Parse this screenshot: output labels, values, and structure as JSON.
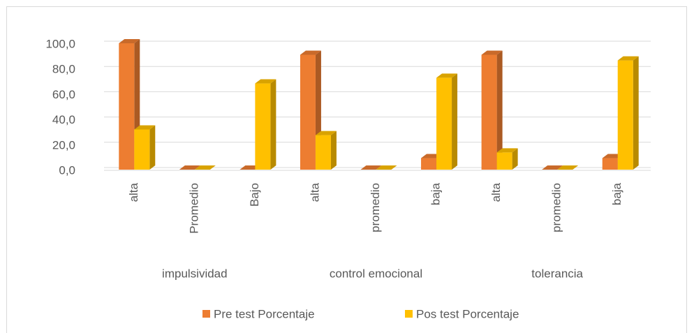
{
  "chart_data": {
    "type": "bar3d",
    "categories": [
      "alta",
      "Promedio",
      "Bajo",
      "alta",
      "promedio",
      "baja",
      "alta",
      "promedio",
      "baja"
    ],
    "category_groups": [
      "impulsividad",
      "control emocional",
      "tolerancia"
    ],
    "series": [
      {
        "name": "Pre test Porcentaje",
        "color": "#ED7D31",
        "values": [
          100,
          0,
          0,
          90.9,
          0,
          9.1,
          90.9,
          0,
          9.1
        ]
      },
      {
        "name": "Pos test Porcentaje",
        "color": "#FFC000",
        "values": [
          31.8,
          0,
          68.2,
          27.3,
          0,
          72.7,
          13.6,
          0,
          86.4
        ]
      }
    ],
    "ylim": [
      0,
      100
    ],
    "yticks": [
      {
        "value": 0,
        "label": "0,0"
      },
      {
        "value": 20,
        "label": "20,0"
      },
      {
        "value": 40,
        "label": "40,0"
      },
      {
        "value": 60,
        "label": "60,0"
      },
      {
        "value": 80,
        "label": "80,0"
      },
      {
        "value": 100,
        "label": "100,0"
      }
    ],
    "grid": true,
    "legend": "bottom"
  }
}
